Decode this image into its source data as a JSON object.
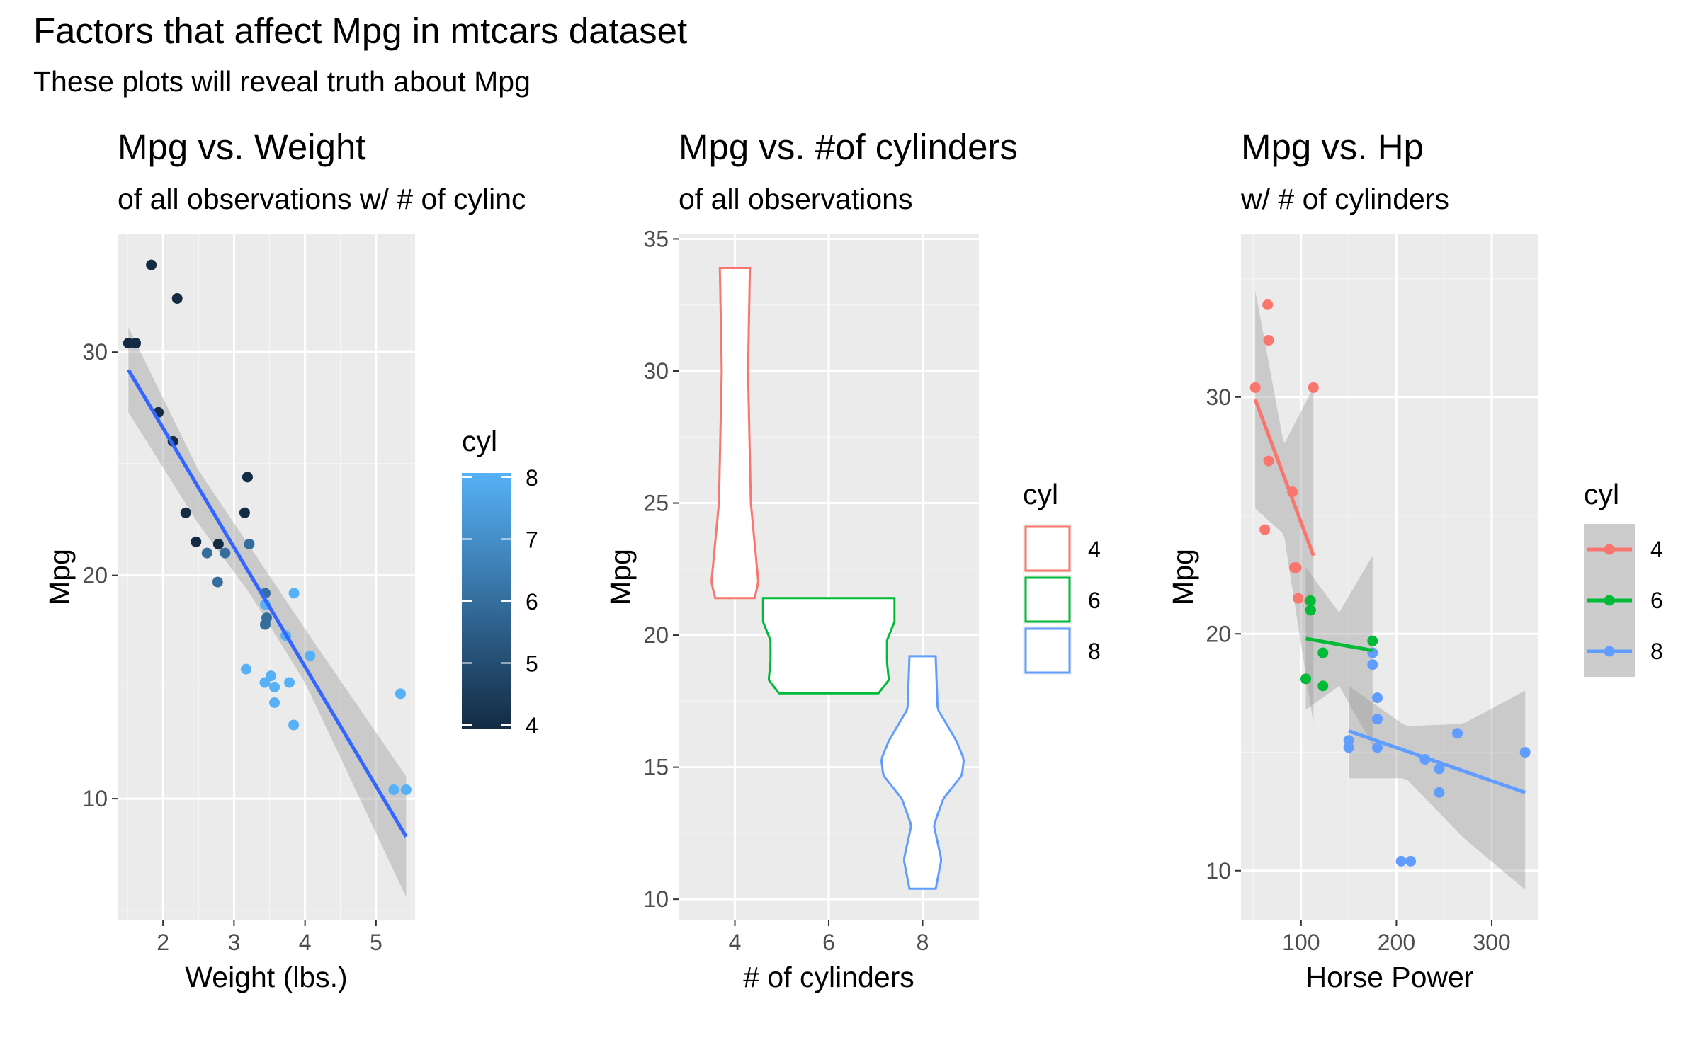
{
  "title": "Factors that affect Mpg in mtcars dataset",
  "subtitle": "These plots will reveal truth about Mpg",
  "chart_data": [
    {
      "type": "scatter",
      "title": "Mpg vs. Weight",
      "subtitle": "of all observations w/ # of cylinc",
      "xlabel": "Weight (lbs.)",
      "ylabel": "Mpg",
      "xlim": [
        1.36,
        5.55
      ],
      "ylim": [
        4.55,
        35.3
      ],
      "xticks": [
        2,
        3,
        4,
        5
      ],
      "yticks": [
        10,
        20,
        30
      ],
      "grid": true,
      "colorbar": {
        "title": "cyl",
        "ticks": [
          4,
          5,
          6,
          7,
          8
        ],
        "low": "#132B43",
        "high": "#56B1F7",
        "placement": "right"
      },
      "points": [
        {
          "x": 2.62,
          "y": 21.0,
          "cyl": 6
        },
        {
          "x": 2.875,
          "y": 21.0,
          "cyl": 6
        },
        {
          "x": 2.32,
          "y": 22.8,
          "cyl": 4
        },
        {
          "x": 3.215,
          "y": 21.4,
          "cyl": 6
        },
        {
          "x": 3.44,
          "y": 18.7,
          "cyl": 8
        },
        {
          "x": 3.46,
          "y": 18.1,
          "cyl": 6
        },
        {
          "x": 3.57,
          "y": 14.3,
          "cyl": 8
        },
        {
          "x": 3.19,
          "y": 24.4,
          "cyl": 4
        },
        {
          "x": 3.15,
          "y": 22.8,
          "cyl": 4
        },
        {
          "x": 3.44,
          "y": 19.2,
          "cyl": 6
        },
        {
          "x": 3.44,
          "y": 17.8,
          "cyl": 6
        },
        {
          "x": 4.07,
          "y": 16.4,
          "cyl": 8
        },
        {
          "x": 3.73,
          "y": 17.3,
          "cyl": 8
        },
        {
          "x": 3.78,
          "y": 15.2,
          "cyl": 8
        },
        {
          "x": 5.25,
          "y": 10.4,
          "cyl": 8
        },
        {
          "x": 5.424,
          "y": 10.4,
          "cyl": 8
        },
        {
          "x": 5.345,
          "y": 14.7,
          "cyl": 8
        },
        {
          "x": 2.2,
          "y": 32.4,
          "cyl": 4
        },
        {
          "x": 1.615,
          "y": 30.4,
          "cyl": 4
        },
        {
          "x": 1.835,
          "y": 33.9,
          "cyl": 4
        },
        {
          "x": 2.465,
          "y": 21.5,
          "cyl": 4
        },
        {
          "x": 3.52,
          "y": 15.5,
          "cyl": 8
        },
        {
          "x": 3.435,
          "y": 15.2,
          "cyl": 8
        },
        {
          "x": 3.84,
          "y": 13.3,
          "cyl": 8
        },
        {
          "x": 3.845,
          "y": 19.2,
          "cyl": 8
        },
        {
          "x": 1.935,
          "y": 27.3,
          "cyl": 4
        },
        {
          "x": 2.14,
          "y": 26.0,
          "cyl": 4
        },
        {
          "x": 1.513,
          "y": 30.4,
          "cyl": 4
        },
        {
          "x": 3.17,
          "y": 15.8,
          "cyl": 8
        },
        {
          "x": 2.77,
          "y": 19.7,
          "cyl": 6
        },
        {
          "x": 3.57,
          "y": 15.0,
          "cyl": 8
        },
        {
          "x": 2.78,
          "y": 21.4,
          "cyl": 4
        }
      ],
      "fit": {
        "x": [
          1.513,
          5.424
        ],
        "y": [
          29.2,
          8.3
        ],
        "color": "#3366FF"
      },
      "band": {
        "x": [
          1.513,
          2.5,
          3.22,
          4.0,
          5.424
        ],
        "lo": [
          27.3,
          22.3,
          19.2,
          15.2,
          5.6
        ],
        "hi": [
          31.1,
          24.7,
          21.3,
          17.6,
          11.0
        ]
      }
    },
    {
      "type": "violin",
      "title": "Mpg vs. #of cylinders",
      "subtitle": "of all observations",
      "xlabel": "# of cylinders",
      "ylabel": "Mpg",
      "ylim": [
        9.2,
        35.2
      ],
      "yticks": [
        10,
        15,
        20,
        25,
        30,
        35
      ],
      "categories": [
        "4",
        "6",
        "8"
      ],
      "grid": true,
      "legend": {
        "title": "cyl",
        "placement": "right"
      },
      "series": [
        {
          "name": "4",
          "color": "#F8766D",
          "y": [
            21.4,
            22.0,
            25.0,
            30.0,
            33.9
          ],
          "half_width": [
            0.21,
            0.25,
            0.17,
            0.14,
            0.16
          ]
        },
        {
          "name": "6",
          "color": "#00BA38",
          "y": [
            17.8,
            18.3,
            19.0,
            19.8,
            20.5,
            21.4
          ],
          "half_width": [
            0.53,
            0.64,
            0.62,
            0.62,
            0.7,
            0.7
          ]
        },
        {
          "name": "8",
          "color": "#619CFF",
          "y": [
            10.4,
            11.5,
            12.8,
            13.8,
            14.7,
            15.3,
            16.0,
            17.2,
            19.2
          ],
          "half_width": [
            0.14,
            0.2,
            0.12,
            0.22,
            0.42,
            0.44,
            0.36,
            0.16,
            0.14
          ]
        }
      ]
    },
    {
      "type": "scatter",
      "title": "Mpg vs. Hp",
      "subtitle": "w/ # of cylinders",
      "xlabel": "Horse Power",
      "ylabel": "Mpg",
      "xlim": [
        37,
        349
      ],
      "ylim": [
        7.9,
        36.9
      ],
      "xticks": [
        100,
        200,
        300
      ],
      "yticks": [
        10,
        20,
        30
      ],
      "grid": true,
      "legend": {
        "title": "cyl",
        "placement": "right"
      },
      "series": [
        {
          "name": "4",
          "color": "#F8766D",
          "points": [
            [
              93,
              22.8
            ],
            [
              62,
              24.4
            ],
            [
              95,
              22.8
            ],
            [
              66,
              32.4
            ],
            [
              52,
              30.4
            ],
            [
              65,
              33.9
            ],
            [
              97,
              21.5
            ],
            [
              66,
              27.3
            ],
            [
              91,
              26.0
            ],
            [
              113,
              30.4
            ],
            [
              109,
              21.4
            ]
          ],
          "fit": {
            "x": [
              52,
              113
            ],
            "y": [
              29.9,
              23.3
            ]
          },
          "band": {
            "x": [
              52,
              82,
              113
            ],
            "lo": [
              25.3,
              24.2,
              16.2
            ],
            "hi": [
              34.5,
              28.0,
              30.4
            ]
          }
        },
        {
          "name": "6",
          "color": "#00BA38",
          "points": [
            [
              110,
              21.0
            ],
            [
              110,
              21.0
            ],
            [
              110,
              21.4
            ],
            [
              105,
              18.1
            ],
            [
              123,
              19.2
            ],
            [
              123,
              17.8
            ],
            [
              175,
              19.7
            ]
          ],
          "fit": {
            "x": [
              105,
              175
            ],
            "y": [
              19.8,
              19.3
            ]
          },
          "band": {
            "x": [
              105,
              140,
              175
            ],
            "lo": [
              16.8,
              17.8,
              15.3
            ],
            "hi": [
              22.8,
              20.9,
              23.3
            ]
          }
        },
        {
          "name": "8",
          "color": "#619CFF",
          "points": [
            [
              175,
              18.7
            ],
            [
              245,
              14.3
            ],
            [
              180,
              16.4
            ],
            [
              180,
              17.3
            ],
            [
              180,
              15.2
            ],
            [
              205,
              10.4
            ],
            [
              215,
              10.4
            ],
            [
              230,
              14.7
            ],
            [
              150,
              15.5
            ],
            [
              150,
              15.2
            ],
            [
              245,
              13.3
            ],
            [
              175,
              19.2
            ],
            [
              264,
              15.8
            ],
            [
              335,
              15.0
            ]
          ],
          "fit": {
            "x": [
              150,
              335
            ],
            "y": [
              15.9,
              13.3
            ]
          },
          "band": {
            "x": [
              150,
              210,
              270,
              335
            ],
            "lo": [
              13.9,
              13.9,
              11.4,
              9.2
            ],
            "hi": [
              17.8,
              16.1,
              16.2,
              17.6
            ]
          }
        }
      ]
    }
  ]
}
